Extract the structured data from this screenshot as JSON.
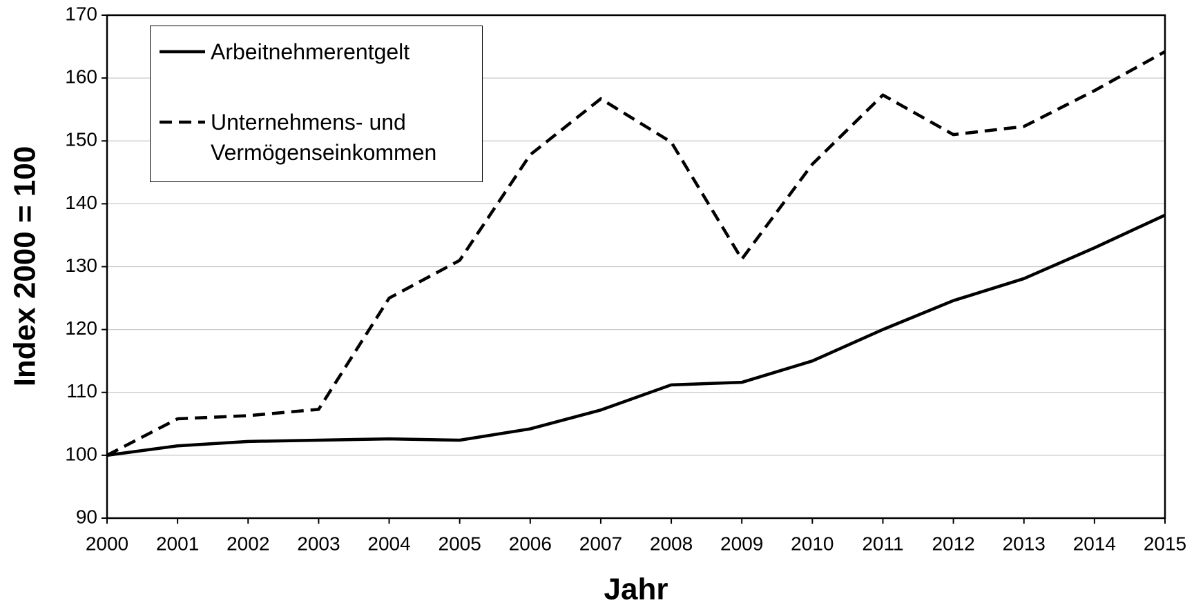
{
  "chart_data": {
    "type": "line",
    "x_label": "Jahr",
    "y_label": "Index 2000 = 100",
    "x": [
      2000,
      2001,
      2002,
      2003,
      2004,
      2005,
      2006,
      2007,
      2008,
      2009,
      2010,
      2011,
      2012,
      2013,
      2014,
      2015
    ],
    "series": [
      {
        "name": "Arbeitnehmerentgelt",
        "color": "#000000",
        "dash": "solid",
        "values": [
          100,
          101.5,
          102.2,
          102.4,
          102.6,
          102.4,
          104.2,
          107.2,
          111.2,
          111.6,
          115,
          120,
          124.6,
          128.1,
          133,
          138.2
        ]
      },
      {
        "name": "Unternehmens- und\nVermögenseinkommen",
        "color": "#000000",
        "dash": "dashed",
        "values": [
          100,
          105.8,
          106.3,
          107.3,
          125,
          131,
          147.8,
          156.7,
          149.8,
          131.2,
          146.3,
          157.3,
          151,
          152.3,
          158,
          164.2
        ]
      }
    ],
    "xlim": [
      2000,
      2015
    ],
    "xticks": [
      2000,
      2001,
      2002,
      2003,
      2004,
      2005,
      2006,
      2007,
      2008,
      2009,
      2010,
      2011,
      2012,
      2013,
      2014,
      2015
    ],
    "ylim": [
      90,
      170
    ],
    "yticks": [
      90,
      100,
      110,
      120,
      130,
      140,
      150,
      160,
      170
    ],
    "grid": true,
    "legend": "upper left"
  }
}
